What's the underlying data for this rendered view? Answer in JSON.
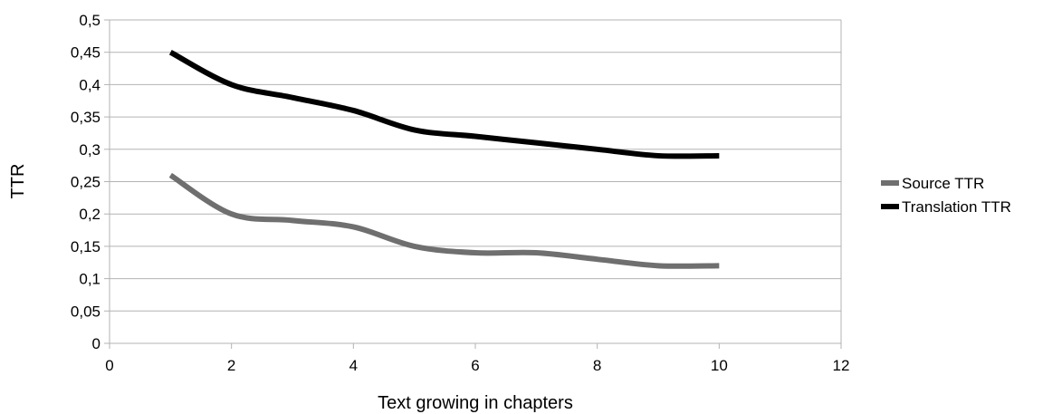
{
  "chart_data": {
    "type": "line",
    "title": "",
    "xlabel": "Text growing in chapters",
    "ylabel": "TTR",
    "xlim": [
      0,
      12
    ],
    "ylim": [
      0,
      0.5
    ],
    "x_ticks": [
      0,
      2,
      4,
      6,
      8,
      10,
      12
    ],
    "x_tick_labels": [
      "0",
      "2",
      "4",
      "6",
      "8",
      "10",
      "12"
    ],
    "y_ticks": [
      0,
      0.05,
      0.1,
      0.15,
      0.2,
      0.25,
      0.3,
      0.35,
      0.4,
      0.45,
      0.5
    ],
    "y_tick_labels": [
      "0",
      "0,05",
      "0,1",
      "0,15",
      "0,2",
      "0,25",
      "0,3",
      "0,35",
      "0,4",
      "0,45",
      "0,5"
    ],
    "grid": "horizontal",
    "smooth": true,
    "legend_position": "right",
    "x": [
      1,
      2,
      3,
      4,
      5,
      6,
      7,
      8,
      9,
      10
    ],
    "series": [
      {
        "name": "Source TTR",
        "color": "#6f6f6f",
        "values": [
          0.26,
          0.2,
          0.19,
          0.18,
          0.15,
          0.14,
          0.14,
          0.13,
          0.12,
          0.12
        ]
      },
      {
        "name": "Translation TTR",
        "color": "#000000",
        "values": [
          0.45,
          0.4,
          0.38,
          0.36,
          0.33,
          0.32,
          0.31,
          0.3,
          0.29,
          0.29
        ]
      }
    ]
  }
}
